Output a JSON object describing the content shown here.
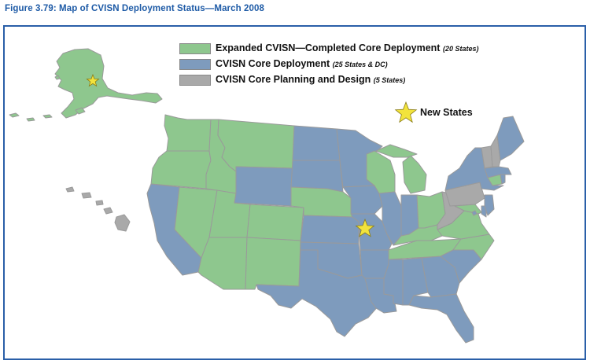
{
  "figure_title": "Figure 3.79: Map of CVISN Deployment Status—March 2008",
  "colors": {
    "expanded": "#8ec78e",
    "core": "#7e9bbd",
    "planning": "#a9a9a9",
    "star": "#f2e33c",
    "border": "#9a9a9a",
    "frame": "#2a5fa8"
  },
  "legend": {
    "expanded": {
      "label": "Expanded CVISN—Completed Core Deployment",
      "note": "(20 States)"
    },
    "core": {
      "label": "CVISN Core Deployment",
      "note": "(25 States & DC)"
    },
    "planning": {
      "label": "CVISN Core Planning and Design",
      "note": "(5 States)"
    }
  },
  "new_states": {
    "label": "New States",
    "icon": "star-icon",
    "states": [
      "Alaska",
      "Missouri"
    ]
  },
  "status": {
    "expanded": [
      "Alaska",
      "Washington",
      "Oregon",
      "Idaho",
      "Montana",
      "Nevada",
      "Utah",
      "Arizona",
      "Colorado",
      "New Mexico",
      "Nebraska",
      "Wisconsin",
      "Michigan",
      "Ohio",
      "Kentucky",
      "Tennessee",
      "Virginia",
      "North Carolina",
      "Connecticut",
      "Maryland"
    ],
    "core": [
      "California",
      "Wyoming",
      "North Dakota",
      "South Dakota",
      "Kansas",
      "Oklahoma",
      "Texas",
      "Minnesota",
      "Iowa",
      "Missouri",
      "Arkansas",
      "Louisiana",
      "Mississippi",
      "Alabama",
      "Georgia",
      "Florida",
      "South Carolina",
      "Illinois",
      "Indiana",
      "New York",
      "New Jersey",
      "Delaware",
      "Maine",
      "Massachusetts",
      "Rhode Island",
      "District of Columbia"
    ],
    "planning": [
      "Hawaii",
      "Pennsylvania",
      "West Virginia",
      "Vermont",
      "New Hampshire"
    ]
  }
}
